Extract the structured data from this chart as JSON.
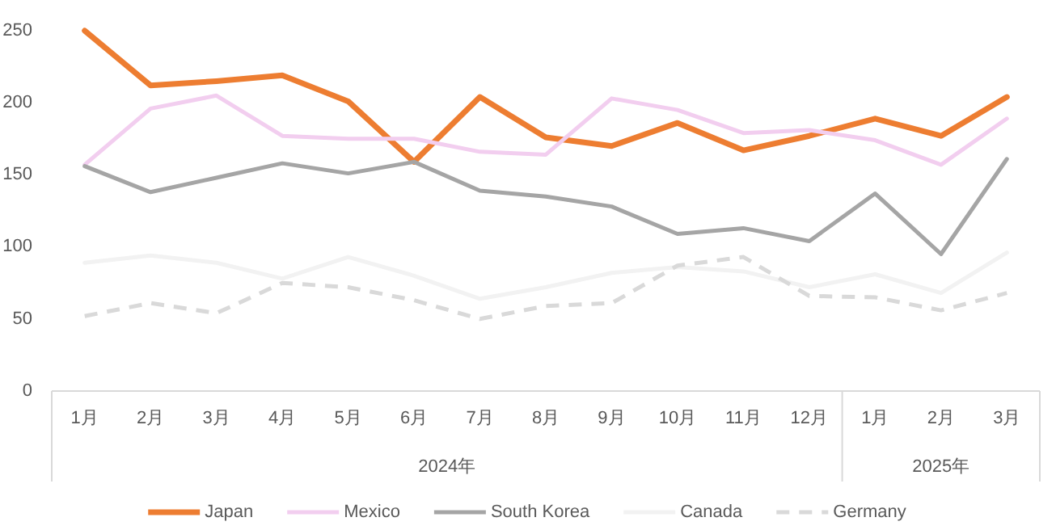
{
  "chart_data": {
    "type": "line",
    "categories": [
      "1月",
      "2月",
      "3月",
      "4月",
      "5月",
      "6月",
      "7月",
      "8月",
      "9月",
      "10月",
      "11月",
      "12月",
      "1月",
      "2月",
      "3月"
    ],
    "series": [
      {
        "name": "Japan",
        "color": "#ed7d31",
        "values": [
          250,
          212,
          215,
          219,
          201,
          159,
          204,
          176,
          170,
          186,
          167,
          177,
          189,
          177,
          204
        ]
      },
      {
        "name": "Mexico",
        "color": "#f2ceef",
        "values": [
          157,
          196,
          205,
          177,
          175,
          175,
          166,
          164,
          203,
          195,
          179,
          181,
          174,
          157,
          189
        ]
      },
      {
        "name": "South Korea",
        "color": "#a5a5a5",
        "values": [
          156,
          138,
          148,
          158,
          151,
          159,
          139,
          135,
          128,
          109,
          113,
          104,
          137,
          95,
          161
        ]
      },
      {
        "name": "Canada",
        "color": "#f2f2f2",
        "values": [
          89,
          94,
          89,
          78,
          93,
          80,
          64,
          72,
          82,
          86,
          83,
          72,
          81,
          68,
          96
        ]
      },
      {
        "name": "Germany",
        "color": "#d9d9d9",
        "line_style": "dashed",
        "values": [
          52,
          61,
          54,
          75,
          72,
          63,
          50,
          59,
          61,
          87,
          93,
          66,
          65,
          56,
          68
        ]
      }
    ],
    "annotations": [
      "2024年",
      "2025年"
    ],
    "ylim": [
      0,
      250
    ],
    "yticks": [
      0,
      50,
      100,
      150,
      200,
      250
    ],
    "legend": "bottom",
    "marker": "none",
    "grid": false
  }
}
